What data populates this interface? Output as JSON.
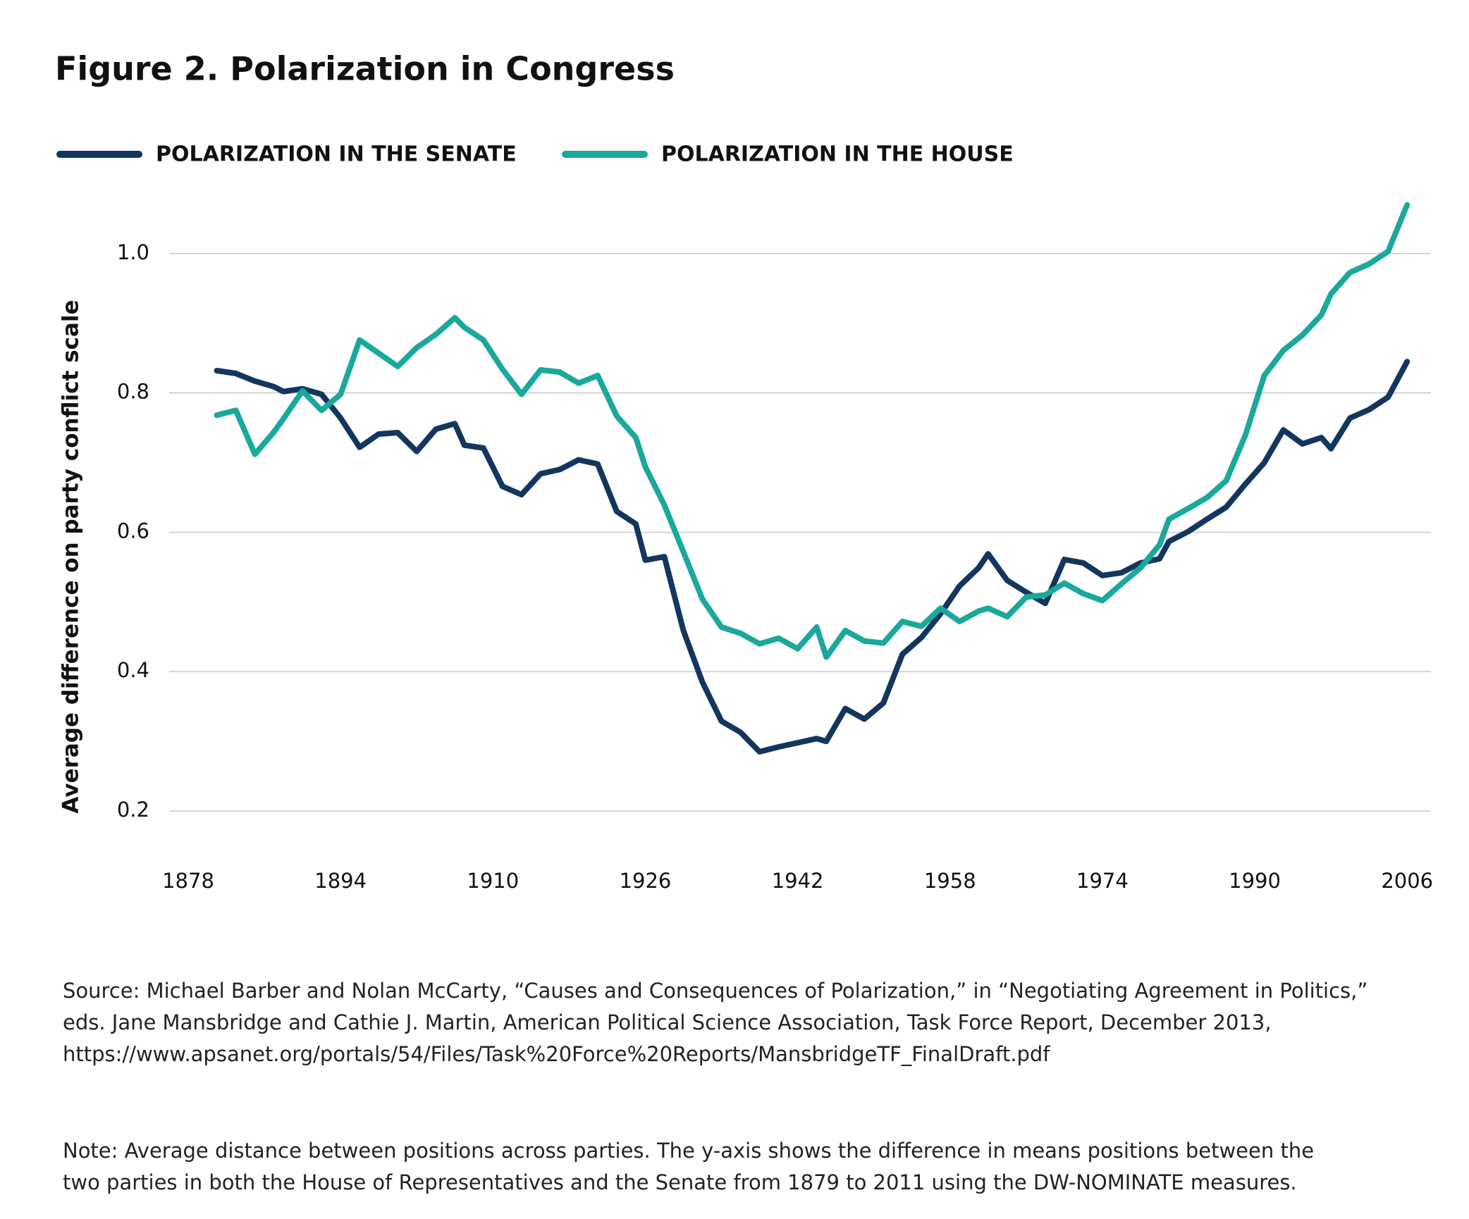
{
  "chart_data": {
    "type": "line",
    "title": "Figure 2. Polarization in Congress",
    "ylabel": "Average difference on party conflict scale",
    "legend": "top-left",
    "grid": true,
    "x": [
      1881,
      1883,
      1885,
      1887,
      1888,
      1890,
      1892,
      1894,
      1896,
      1898,
      1900,
      1902,
      1904,
      1906,
      1907,
      1909,
      1911,
      1913,
      1915,
      1917,
      1919,
      1921,
      1923,
      1925,
      1926,
      1928,
      1930,
      1932,
      1934,
      1936,
      1938,
      1940,
      1942,
      1944,
      1945,
      1947,
      1949,
      1951,
      1953,
      1955,
      1957,
      1959,
      1961,
      1962,
      1964,
      1966,
      1968,
      1970,
      1972,
      1974,
      1976,
      1978,
      1980,
      1981,
      1983,
      1985,
      1987,
      1989,
      1991,
      1993,
      1995,
      1997,
      1998,
      2000,
      2002,
      2004,
      2006
    ],
    "series": [
      {
        "name": "POLARIZATION IN THE SENATE",
        "color": "#13365e",
        "values": [
          0.832,
          0.828,
          0.817,
          0.809,
          0.802,
          0.806,
          0.798,
          0.764,
          0.722,
          0.741,
          0.743,
          0.716,
          0.748,
          0.756,
          0.725,
          0.721,
          0.666,
          0.654,
          0.684,
          0.69,
          0.704,
          0.698,
          0.63,
          0.612,
          0.56,
          0.565,
          0.459,
          0.385,
          0.329,
          0.313,
          0.285,
          0.292,
          0.298,
          0.304,
          0.3,
          0.347,
          0.332,
          0.355,
          0.425,
          0.449,
          0.483,
          0.523,
          0.549,
          0.569,
          0.531,
          0.514,
          0.498,
          0.561,
          0.556,
          0.538,
          0.542,
          0.556,
          0.562,
          0.587,
          0.601,
          0.619,
          0.636,
          0.669,
          0.7,
          0.747,
          0.727,
          0.736,
          0.72,
          0.764,
          0.776,
          0.794,
          0.845
        ]
      },
      {
        "name": "POLARIZATION IN THE HOUSE",
        "color": "#1aa89c",
        "values": [
          0.768,
          0.775,
          0.712,
          0.744,
          0.763,
          0.803,
          0.775,
          0.798,
          0.876,
          0.857,
          0.838,
          0.865,
          0.884,
          0.908,
          0.894,
          0.876,
          0.834,
          0.798,
          0.833,
          0.83,
          0.814,
          0.825,
          0.767,
          0.736,
          0.694,
          0.639,
          0.572,
          0.504,
          0.464,
          0.455,
          0.44,
          0.448,
          0.433,
          0.464,
          0.421,
          0.459,
          0.444,
          0.441,
          0.472,
          0.465,
          0.491,
          0.472,
          0.487,
          0.491,
          0.479,
          0.507,
          0.51,
          0.527,
          0.512,
          0.502,
          0.526,
          0.549,
          0.582,
          0.619,
          0.634,
          0.65,
          0.674,
          0.739,
          0.825,
          0.861,
          0.883,
          0.912,
          0.942,
          0.973,
          0.985,
          1.003,
          1.07
        ]
      }
    ],
    "xlim": [
      1876,
      2008.5
    ],
    "xticks": [
      1878,
      1894,
      1910,
      1926,
      1942,
      1958,
      1974,
      1990,
      2006
    ],
    "ylim": [
      0.2,
      1.1
    ],
    "yticks": [
      0.2,
      0.4,
      0.6,
      0.8,
      {
        "value": 1,
        "label": "1.0"
      }
    ],
    "source": [
      "Source: Michael Barber and Nolan McCarty, “Causes and Consequences of Polarization,” in “Negotiating Agreement in Politics,”",
      "eds. Jane Mansbridge and Cathie J. Martin, American Political Science Association, Task Force Report, December 2013,",
      "https://www.apsanet.org/portals/54/Files/Task%20Force%20Reports/MansbridgeTF_FinalDraft.pdf"
    ],
    "note": [
      "Note: Average distance between positions across parties. The y-axis shows the difference in means positions between the",
      "two parties in both the House of Representatives and the Senate from 1879 to 2011 using the DW-NOMINATE measures."
    ]
  }
}
